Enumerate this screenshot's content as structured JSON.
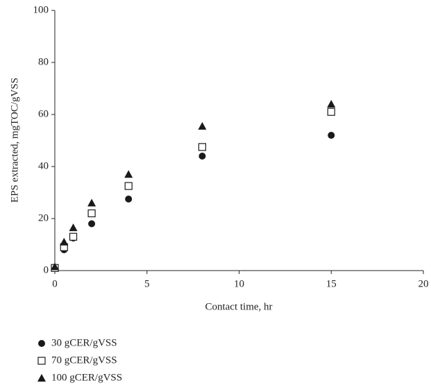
{
  "chart_data": {
    "type": "scatter",
    "xlabel": "Contact time, hr",
    "ylabel": "EPS extracted, mgTOC/gVSS",
    "xlim": [
      0,
      20
    ],
    "xticks": [
      0,
      5,
      10,
      15,
      20
    ],
    "ylim": [
      0,
      100
    ],
    "yticks": [
      0,
      20,
      40,
      60,
      80,
      100
    ],
    "series": [
      {
        "name": "30 gCER/gVSS",
        "marker": "circle",
        "color": "#1a1a1a",
        "x": [
          0,
          0.5,
          1,
          2,
          4,
          8,
          15
        ],
        "values": [
          1,
          8,
          12.5,
          18,
          27.5,
          44,
          52
        ]
      },
      {
        "name": "70 gCER/gVSS",
        "marker": "square-open",
        "color": "#1a1a1a",
        "x": [
          0,
          0.5,
          1,
          2,
          4,
          8,
          15
        ],
        "values": [
          1,
          9,
          13,
          22,
          32.5,
          47.5,
          61
        ]
      },
      {
        "name": "100 gCER/gVSS",
        "marker": "triangle",
        "color": "#1a1a1a",
        "x": [
          0,
          0.5,
          1,
          2,
          4,
          8,
          15
        ],
        "values": [
          1.5,
          11,
          16.5,
          26,
          37,
          55.5,
          64
        ]
      }
    ],
    "legend": "bottom-left"
  }
}
